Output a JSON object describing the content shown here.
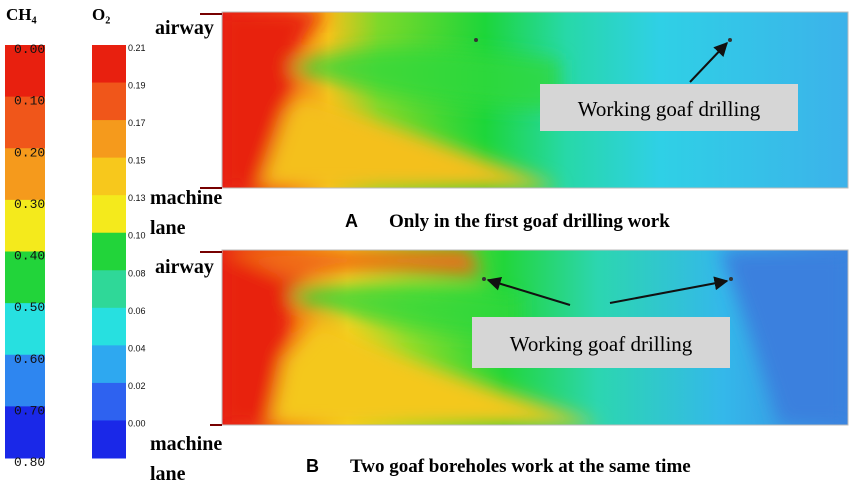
{
  "colorbars": [
    {
      "title": "CH₄",
      "labels": [
        "0.00",
        "0.10",
        "0.20",
        "0.30",
        "0.40",
        "0.50",
        "0.60",
        "0.70",
        "0.80"
      ]
    },
    {
      "title": "O₂",
      "labels": [
        "0.21",
        "0.19",
        "0.17",
        "0.15",
        "0.13",
        "0.10",
        "0.08",
        "0.06",
        "0.04",
        "0.02",
        "0.00"
      ]
    }
  ],
  "panels": [
    {
      "letter": "A",
      "caption": "Only in the first goaf drilling work",
      "top_label": "airway",
      "bottom_label": [
        "machine",
        "lane"
      ],
      "annotation": "Working goaf drilling"
    },
    {
      "letter": "B",
      "caption": "Two goaf boreholes work at the same time",
      "top_label": "airway",
      "bottom_label": [
        "machine",
        "lane"
      ],
      "annotation": "Working goaf drilling"
    }
  ]
}
